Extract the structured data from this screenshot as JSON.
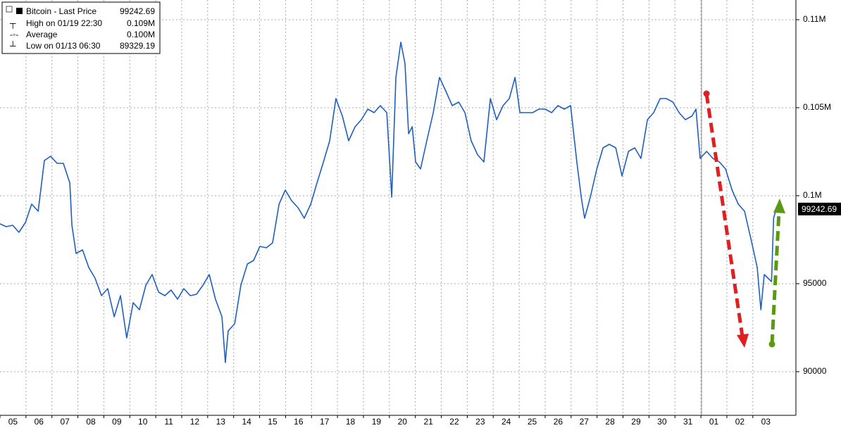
{
  "chart_data": {
    "type": "line",
    "legend": {
      "stats": [
        {
          "name": "High on 01/19 22:30",
          "value": {
            "value": 109000,
            "label": "0.109M"
          }
        },
        {
          "name": "Average",
          "value": {
            "value": 100000,
            "label": "0.100M"
          }
        },
        {
          "name": "Low on 01/13 06:30",
          "value": 89329.19
        }
      ]
    },
    "last_value": 99242.69,
    "xlim": [
      0,
      30.66
    ],
    "ylim": [
      87520,
      111120
    ],
    "xticks": [
      {
        "value": 0,
        "label": "05"
      },
      {
        "value": 1,
        "label": "06"
      },
      {
        "value": 2,
        "label": "07"
      },
      {
        "value": 3,
        "label": "08"
      },
      {
        "value": 4,
        "label": "09"
      },
      {
        "value": 5,
        "label": "10"
      },
      {
        "value": 6,
        "label": "11"
      },
      {
        "value": 7,
        "label": "12"
      },
      {
        "value": 8,
        "label": "13"
      },
      {
        "value": 9,
        "label": "14"
      },
      {
        "value": 10,
        "label": "15"
      },
      {
        "value": 11,
        "label": "16"
      },
      {
        "value": 12,
        "label": "17"
      },
      {
        "value": 13,
        "label": "18"
      },
      {
        "value": 14,
        "label": "19"
      },
      {
        "value": 15,
        "label": "20"
      },
      {
        "value": 16,
        "label": "21"
      },
      {
        "value": 17,
        "label": "22"
      },
      {
        "value": 18,
        "label": "23"
      },
      {
        "value": 19,
        "label": "24"
      },
      {
        "value": 20,
        "label": "25"
      },
      {
        "value": 21,
        "label": "26"
      },
      {
        "value": 22,
        "label": "27"
      },
      {
        "value": 23,
        "label": "28"
      },
      {
        "value": 24,
        "label": "29"
      },
      {
        "value": 25,
        "label": "30"
      },
      {
        "value": 26,
        "label": "31"
      },
      {
        "value": 27,
        "label": "01"
      },
      {
        "value": 28,
        "label": "02"
      },
      {
        "value": 29,
        "label": "03"
      }
    ],
    "yticks": [
      {
        "value": 110000,
        "label": "0.11M"
      },
      {
        "value": 105000,
        "label": "0.105M"
      },
      {
        "value": 100000,
        "label": "0.1M"
      },
      95000,
      90000
    ],
    "grid": true,
    "series": [
      {
        "name": "Bitcoin - Last Price",
        "color": "#1f5fbf",
        "x": [
          0,
          0.24,
          0.49,
          0.73,
          0.98,
          1.22,
          1.47,
          1.71,
          1.95,
          2.2,
          2.44,
          2.69,
          2.77,
          2.93,
          3.18,
          3.42,
          3.66,
          3.91,
          4.15,
          4.4,
          4.64,
          4.88,
          5.13,
          5.37,
          5.62,
          5.86,
          6.11,
          6.35,
          6.59,
          6.84,
          7.08,
          7.33,
          7.57,
          7.82,
          8.06,
          8.3,
          8.55,
          8.68,
          8.79,
          9.04,
          9.28,
          9.53,
          9.77,
          10.01,
          10.26,
          10.5,
          10.75,
          10.99,
          11.23,
          11.48,
          11.72,
          11.97,
          12.21,
          12.46,
          12.7,
          12.94,
          13.19,
          13.43,
          13.68,
          13.92,
          14.17,
          14.41,
          14.65,
          14.9,
          15.09,
          15.25,
          15.44,
          15.6,
          15.74,
          15.88,
          16.01,
          16.2,
          16.44,
          16.69,
          16.93,
          17.18,
          17.42,
          17.67,
          17.91,
          18.15,
          18.4,
          18.64,
          18.89,
          19.13,
          19.38,
          19.62,
          19.84,
          20.03,
          20.27,
          20.52,
          20.76,
          21.0,
          21.25,
          21.49,
          21.74,
          21.98,
          22.22,
          22.39,
          22.52,
          22.74,
          22.99,
          23.23,
          23.47,
          23.72,
          23.96,
          24.21,
          24.45,
          24.69,
          24.94,
          25.18,
          25.43,
          25.67,
          25.92,
          26.16,
          26.4,
          26.65,
          26.81,
          26.97,
          27.22,
          27.46,
          27.71,
          27.95,
          28.2,
          28.44,
          28.68,
          28.93,
          29.17,
          29.31,
          29.44,
          29.58,
          29.72,
          29.8,
          29.9
        ],
        "values": [
          98400,
          98240,
          98320,
          97920,
          98480,
          99520,
          99120,
          102000,
          102240,
          101840,
          101840,
          100720,
          98320,
          96720,
          96920,
          95920,
          95320,
          94320,
          94720,
          93120,
          94320,
          91920,
          93920,
          93520,
          94920,
          95520,
          94520,
          94320,
          94640,
          94120,
          94720,
          94320,
          94400,
          94920,
          95520,
          94120,
          93120,
          90520,
          92320,
          92720,
          94920,
          96120,
          96320,
          97120,
          97040,
          97320,
          99520,
          100320,
          99720,
          99320,
          98720,
          99520,
          100720,
          101920,
          103120,
          105520,
          104520,
          103120,
          103920,
          104320,
          104920,
          104720,
          105120,
          104720,
          99920,
          106720,
          108720,
          107520,
          103520,
          103920,
          101920,
          101520,
          103120,
          104720,
          106720,
          105920,
          105120,
          105320,
          104720,
          103120,
          102320,
          101920,
          105520,
          104320,
          105120,
          105520,
          106720,
          104720,
          104720,
          104720,
          104920,
          104920,
          104720,
          105120,
          104920,
          105120,
          101920,
          99920,
          98720,
          99920,
          101520,
          102720,
          102920,
          102720,
          101120,
          102520,
          102720,
          102120,
          104320,
          104720,
          105520,
          105520,
          105320,
          104720,
          104320,
          104520,
          104920,
          102120,
          102520,
          102120,
          101920,
          101520,
          100320,
          99520,
          99120,
          97520,
          95920,
          93520,
          95520,
          95320,
          95120,
          98720,
          99242.69
        ]
      }
    ]
  }
}
